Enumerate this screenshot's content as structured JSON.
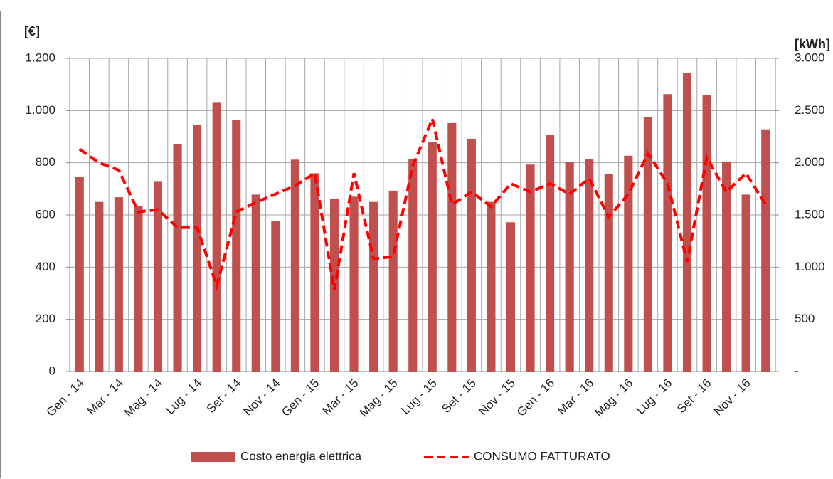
{
  "chart_data": {
    "type": "bar_line",
    "y_label": "[€]",
    "y2_label": "[kWh]",
    "categories": [
      "Gen - 14",
      null,
      "Mar - 14",
      null,
      "Mag - 14",
      null,
      "Lug - 14",
      null,
      "Set - 14",
      null,
      "Nov - 14",
      null,
      "Gen - 15",
      null,
      "Mar - 15",
      null,
      "Mag - 15",
      null,
      "Lug - 15",
      null,
      "Set - 15",
      null,
      "Nov - 15",
      null,
      "Gen - 16",
      null,
      "Mar - 16",
      null,
      "Mag - 16",
      null,
      "Lug - 16",
      null,
      "Set - 16",
      null,
      "Nov - 16",
      null
    ],
    "series": [
      {
        "name": "Costo energia elettrica",
        "color": "#c0504d",
        "type": "bar",
        "values": [
          745,
          650,
          668,
          635,
          727,
          872,
          945,
          1030,
          965,
          678,
          578,
          812,
          760,
          663,
          670,
          650,
          693,
          815,
          880,
          952,
          892,
          650,
          572,
          793,
          908,
          803,
          815,
          758,
          827,
          975,
          1063,
          1143,
          1060,
          805,
          678,
          928
        ]
      },
      {
        "name": "CONSUMO FATTURATO",
        "color": "#ff0000",
        "type": "line",
        "axis": "y2",
        "values": [
          2130,
          2000,
          1930,
          1530,
          1550,
          1380,
          1380,
          820,
          1530,
          1620,
          1700,
          1780,
          1900,
          780,
          1900,
          1080,
          1100,
          1970,
          2420,
          1600,
          1720,
          1580,
          1800,
          1720,
          1800,
          1700,
          1850,
          1480,
          1700,
          2090,
          1800,
          1050,
          2050,
          1720,
          1900,
          1600
        ]
      }
    ],
    "ylim": [
      0,
      1200
    ],
    "yticks": [
      0,
      200,
      400,
      600,
      800,
      {
        "value": 1000,
        "label": "1.000"
      },
      {
        "value": 1200,
        "label": "1.200"
      }
    ],
    "y2lim": [
      0,
      3000
    ],
    "y2ticks": [
      {
        "value": 0,
        "label": "-"
      },
      500,
      {
        "value": 1000,
        "label": "1.000"
      },
      {
        "value": 1500,
        "label": "1.500"
      },
      {
        "value": 2000,
        "label": "2.000"
      },
      {
        "value": 2500,
        "label": "2.500"
      },
      {
        "value": 3000,
        "label": "3.000"
      }
    ],
    "grid": true,
    "legend": "bottom"
  }
}
